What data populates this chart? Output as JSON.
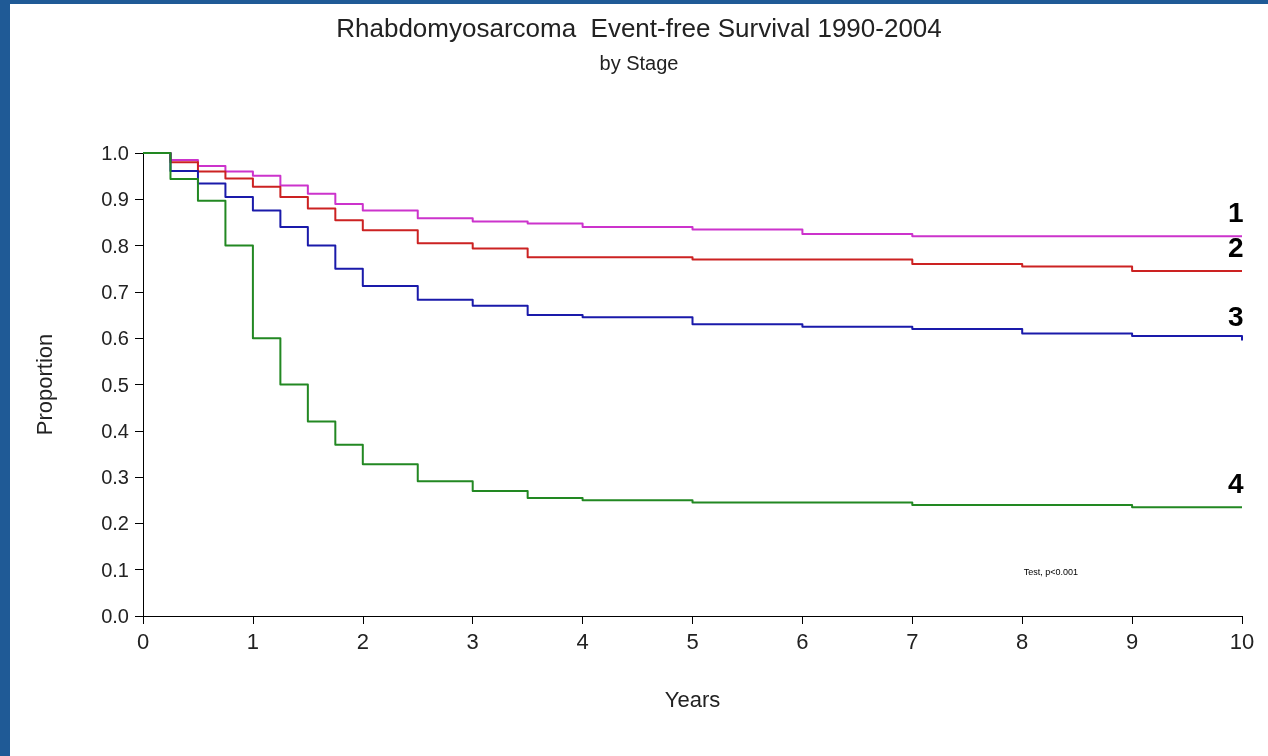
{
  "chart_data": {
    "type": "step",
    "title": "Rhabdomyosarcoma  Event-free Survival 1990-2004",
    "subtitle": "by Stage",
    "xlabel": "Years",
    "ylabel": "Proportion",
    "annotations": [
      "Test, p<0.001"
    ],
    "x": [
      0,
      0.25,
      0.5,
      0.75,
      1,
      1.25,
      1.5,
      1.75,
      2,
      2.5,
      3,
      3.5,
      4,
      5,
      6,
      7,
      8,
      9,
      10
    ],
    "series": [
      {
        "name": "1",
        "color": "#cc33cc",
        "values": [
          1.0,
          0.985,
          0.972,
          0.96,
          0.951,
          0.93,
          0.912,
          0.89,
          0.876,
          0.859,
          0.852,
          0.848,
          0.84,
          0.835,
          0.825,
          0.82,
          0.82,
          0.82,
          0.82
        ]
      },
      {
        "name": "2",
        "color": "#cc2222",
        "values": [
          1.0,
          0.98,
          0.96,
          0.945,
          0.927,
          0.905,
          0.88,
          0.855,
          0.833,
          0.805,
          0.794,
          0.775,
          0.775,
          0.77,
          0.77,
          0.76,
          0.755,
          0.745,
          0.745
        ]
      },
      {
        "name": "3",
        "color": "#1a1aaa",
        "values": [
          1.0,
          0.961,
          0.934,
          0.905,
          0.876,
          0.84,
          0.8,
          0.75,
          0.713,
          0.683,
          0.67,
          0.65,
          0.645,
          0.63,
          0.625,
          0.62,
          0.61,
          0.605,
          0.595
        ]
      },
      {
        "name": "4",
        "color": "#228822",
        "values": [
          1.0,
          0.944,
          0.897,
          0.8,
          0.6,
          0.5,
          0.42,
          0.37,
          0.328,
          0.291,
          0.27,
          0.255,
          0.25,
          0.245,
          0.245,
          0.24,
          0.24,
          0.235,
          0.235
        ]
      }
    ],
    "xlim": [
      0,
      10
    ],
    "xticks": [
      0,
      1,
      2,
      3,
      4,
      5,
      6,
      7,
      8,
      9,
      10
    ],
    "ylim": [
      0,
      1
    ],
    "yticks": [
      {
        "value": 0,
        "label": "0.0"
      },
      {
        "value": 0.1,
        "label": "0.1"
      },
      {
        "value": 0.2,
        "label": "0.2"
      },
      {
        "value": 0.3,
        "label": "0.3"
      },
      {
        "value": 0.4,
        "label": "0.4"
      },
      {
        "value": 0.5,
        "label": "0.5"
      },
      {
        "value": 0.6,
        "label": "0.6"
      },
      {
        "value": 0.7,
        "label": "0.7"
      },
      {
        "value": 0.8,
        "label": "0.8"
      },
      {
        "value": 0.9,
        "label": "0.9"
      },
      {
        "value": 1,
        "label": "1.0"
      }
    ],
    "grid": false,
    "legend": false
  }
}
